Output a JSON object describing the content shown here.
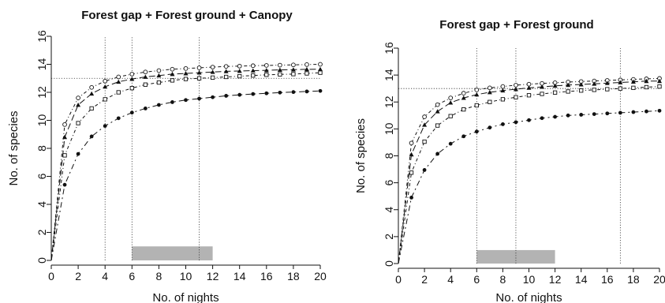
{
  "chart_data": [
    {
      "type": "line",
      "title": "Forest gap + Forest ground + Canopy",
      "xlabel": "No. of nights",
      "ylabel": "No. of species",
      "xlim": [
        0,
        20
      ],
      "ylim": [
        0,
        16
      ],
      "xticks": [
        0,
        2,
        4,
        6,
        8,
        10,
        12,
        14,
        16,
        18,
        20
      ],
      "yticks": [
        0,
        2,
        4,
        6,
        8,
        10,
        12,
        14,
        16
      ],
      "grid": false,
      "reference_lines": {
        "horizontal": [
          13
        ],
        "vertical": [
          4,
          6,
          11
        ]
      },
      "shaded_interval": {
        "x": [
          6,
          12
        ],
        "y": [
          0,
          1
        ],
        "color": "#b3b3b3"
      },
      "series": [
        {
          "marker": "open-circle",
          "line_style": "dash-dot",
          "x": [
            0,
            1,
            2,
            3,
            4,
            5,
            6,
            7,
            8,
            9,
            10,
            11,
            12,
            13,
            14,
            15,
            16,
            17,
            18,
            19,
            20
          ],
          "y": [
            0,
            9.7,
            11.6,
            12.35,
            12.8,
            13.1,
            13.3,
            13.45,
            13.55,
            13.65,
            13.7,
            13.75,
            13.8,
            13.85,
            13.87,
            13.9,
            13.92,
            13.94,
            13.96,
            13.98,
            14.0
          ]
        },
        {
          "marker": "filled-triangle",
          "line_style": "long-dash",
          "x": [
            0,
            1,
            2,
            3,
            4,
            5,
            6,
            7,
            8,
            9,
            10,
            11,
            12,
            13,
            14,
            15,
            16,
            17,
            18,
            19,
            20
          ],
          "y": [
            0,
            8.8,
            11.1,
            11.9,
            12.4,
            12.75,
            12.95,
            13.1,
            13.2,
            13.3,
            13.35,
            13.4,
            13.45,
            13.5,
            13.52,
            13.55,
            13.57,
            13.6,
            13.62,
            13.64,
            13.65
          ]
        },
        {
          "marker": "open-square",
          "line_style": "dash-dot",
          "x": [
            0,
            1,
            2,
            3,
            4,
            5,
            6,
            7,
            8,
            9,
            10,
            11,
            12,
            13,
            14,
            15,
            16,
            17,
            18,
            19,
            20
          ],
          "y": [
            0,
            7.5,
            9.8,
            10.85,
            11.5,
            12.0,
            12.3,
            12.55,
            12.7,
            12.85,
            12.95,
            13.0,
            13.05,
            13.1,
            13.15,
            13.2,
            13.25,
            13.28,
            13.3,
            13.35,
            13.4
          ]
        },
        {
          "marker": "filled-circle",
          "line_style": "dash-dot",
          "x": [
            0,
            1,
            2,
            3,
            4,
            5,
            6,
            7,
            8,
            9,
            10,
            11,
            12,
            13,
            14,
            15,
            16,
            17,
            18,
            19,
            20
          ],
          "y": [
            0,
            5.4,
            7.6,
            8.85,
            9.6,
            10.15,
            10.55,
            10.85,
            11.1,
            11.3,
            11.45,
            11.55,
            11.65,
            11.75,
            11.82,
            11.88,
            11.93,
            11.98,
            12.02,
            12.06,
            12.1
          ]
        }
      ]
    },
    {
      "type": "line",
      "title": "Forest gap + Forest ground",
      "xlabel": "No. of nights",
      "ylabel": "No. of species",
      "xlim": [
        0,
        20
      ],
      "ylim": [
        0,
        16
      ],
      "xticks": [
        0,
        2,
        4,
        6,
        8,
        10,
        12,
        14,
        16,
        18,
        20
      ],
      "yticks": [
        0,
        2,
        4,
        6,
        8,
        10,
        12,
        14,
        16
      ],
      "grid": false,
      "reference_lines": {
        "horizontal": [
          13
        ],
        "vertical": [
          6,
          9,
          17
        ]
      },
      "shaded_interval": {
        "x": [
          6,
          12
        ],
        "y": [
          0,
          1
        ],
        "color": "#b3b3b3"
      },
      "series": [
        {
          "marker": "open-circle",
          "line_style": "dash-dot",
          "x": [
            0,
            1,
            2,
            3,
            4,
            5,
            6,
            7,
            8,
            9,
            10,
            11,
            12,
            13,
            14,
            15,
            16,
            17,
            18,
            19,
            20
          ],
          "y": [
            0,
            8.95,
            10.9,
            11.8,
            12.3,
            12.65,
            12.9,
            13.05,
            13.15,
            13.25,
            13.32,
            13.38,
            13.43,
            13.48,
            13.52,
            13.56,
            13.6,
            13.64,
            13.68,
            13.72,
            13.75
          ]
        },
        {
          "marker": "filled-triangle",
          "line_style": "long-dash",
          "x": [
            0,
            1,
            2,
            3,
            4,
            5,
            6,
            7,
            8,
            9,
            10,
            11,
            12,
            13,
            14,
            15,
            16,
            17,
            18,
            19,
            20
          ],
          "y": [
            0,
            8.1,
            10.3,
            11.3,
            11.95,
            12.3,
            12.55,
            12.72,
            12.85,
            12.95,
            13.05,
            13.12,
            13.2,
            13.26,
            13.3,
            13.35,
            13.4,
            13.45,
            13.5,
            13.55,
            13.55
          ]
        },
        {
          "marker": "open-square",
          "line_style": "dash-dot",
          "x": [
            0,
            1,
            2,
            3,
            4,
            5,
            6,
            7,
            8,
            9,
            10,
            11,
            12,
            13,
            14,
            15,
            16,
            17,
            18,
            19,
            20
          ],
          "y": [
            0,
            6.75,
            9.05,
            10.25,
            10.95,
            11.45,
            11.75,
            12.0,
            12.2,
            12.35,
            12.5,
            12.6,
            12.7,
            12.78,
            12.85,
            12.9,
            12.95,
            13.0,
            13.05,
            13.1,
            13.15
          ]
        },
        {
          "marker": "filled-circle",
          "line_style": "dash-dot",
          "x": [
            0,
            1,
            2,
            3,
            4,
            5,
            6,
            7,
            8,
            9,
            10,
            11,
            12,
            13,
            14,
            15,
            16,
            17,
            18,
            19,
            20
          ],
          "y": [
            0,
            4.9,
            6.95,
            8.15,
            8.9,
            9.45,
            9.8,
            10.1,
            10.35,
            10.5,
            10.65,
            10.8,
            10.9,
            11.0,
            11.05,
            11.1,
            11.15,
            11.2,
            11.25,
            11.3,
            11.35
          ]
        }
      ]
    }
  ]
}
